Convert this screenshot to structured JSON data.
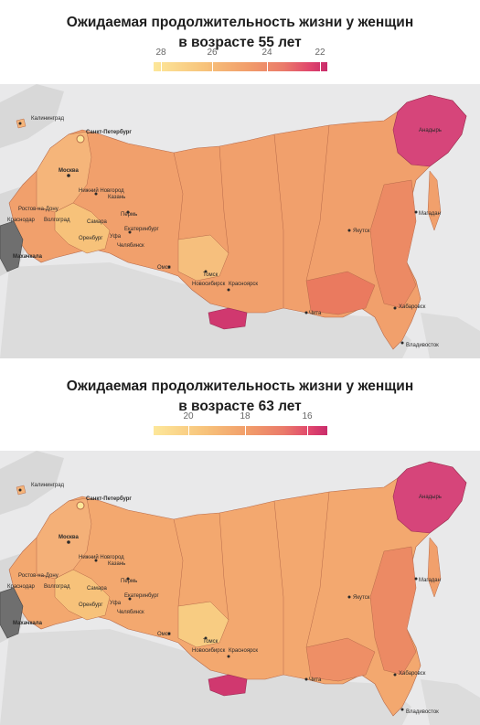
{
  "maps": [
    {
      "title_line1": "Ожидаемая продолжительность жизни у женщин",
      "title_line2": "в возрасте 55 лет",
      "legend_ticks": [
        "28",
        "26",
        "24",
        "22"
      ],
      "colors": {
        "main": "#f1a06c",
        "light": "#f7c27a",
        "pale": "#fde79a",
        "dark": "#ea7a5f",
        "magenta": "#d6457a",
        "grey": "#6f6f6f",
        "sea": "#e9e9ea",
        "land_other": "#d8d8d8"
      }
    },
    {
      "title_line1": "Ожидаемая продолжительность жизни у женщин",
      "title_line2": "в возрасте 63 лет",
      "legend_ticks": [
        "20",
        "18",
        "16"
      ],
      "colors": {
        "main": "#f3a86f",
        "light": "#f7c27a",
        "pale": "#fde79a",
        "dark": "#ea7a5f",
        "magenta": "#d6457a",
        "grey": "#6f6f6f",
        "sea": "#e9e9ea",
        "land_other": "#d8d8d8"
      }
    }
  ],
  "cities": {
    "kaliningrad": "Калининград",
    "spb": "Санкт-Петербург",
    "moscow": "Москва",
    "nnovgorod": "Нижний Новгород",
    "rostov": "Ростов-на-Дону",
    "volgograd": "Волгоград",
    "samara": "Самара",
    "kazan": "Казань",
    "perm": "Пермь",
    "ekb": "Екатеринбург",
    "ufa": "Уфа",
    "chelyabinsk": "Челябинск",
    "orenburg": "Оренбург",
    "krasnodar": "Краснодар",
    "makhachkala": "Махачкала",
    "omsk": "Омск",
    "tomsk": "Томск",
    "novosibirsk": "Новосибирск",
    "krasnoyarsk": "Красноярск",
    "yakutsk": "Якутск",
    "magadan": "Магадан",
    "anadyr": "Анадырь",
    "chita": "Чита",
    "khabarovsk": "Хабаровск",
    "vladivostok": "Владивосток"
  }
}
